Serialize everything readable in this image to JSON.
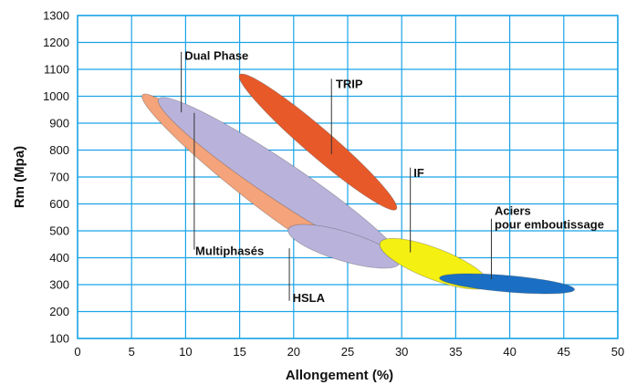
{
  "chart_data": {
    "type": "scatter",
    "xlabel": "Allongement (%)",
    "ylabel": "Rm (Mpa)",
    "xlim": [
      0,
      50
    ],
    "ylim": [
      100,
      1300
    ],
    "xticks": [
      "0",
      "5",
      "10",
      "15",
      "20",
      "25",
      "30",
      "35",
      "40",
      "45",
      "50"
    ],
    "yticks": [
      "100",
      "200",
      "300",
      "400",
      "500",
      "600",
      "700",
      "800",
      "900",
      "1000",
      "1100",
      "1200",
      "1300"
    ],
    "grid": true,
    "regions": [
      {
        "name": "Multiphasés",
        "label_lines": [
          "Multiphasés"
        ],
        "color": "#f4a37a",
        "start": [
          6,
          1005
        ],
        "end": [
          24.5,
          405
        ],
        "width": 34,
        "leader_x": 10.8,
        "leader_from": 938,
        "leader_to": 430,
        "label_at": [
          10.9,
          410
        ]
      },
      {
        "name": "Dual Phase",
        "label_lines": [
          "Dual Phase"
        ],
        "color": "#b9b3dc",
        "start": [
          7.5,
          990
        ],
        "end": [
          30,
          385
        ],
        "width": 42,
        "leader_x": 9.6,
        "leader_from": 1165,
        "leader_to": 940,
        "label_at": [
          9.9,
          1135
        ]
      },
      {
        "name": "HSLA",
        "label_lines": [
          "HSLA"
        ],
        "color": "#b9b3dc",
        "start": [
          19.5,
          505
        ],
        "end": [
          29.8,
          380
        ],
        "width": 32,
        "leader_x": 19.6,
        "leader_from": 435,
        "leader_to": 240,
        "label_at": [
          19.9,
          235
        ]
      },
      {
        "name": "TRIP",
        "label_lines": [
          "TRIP"
        ],
        "color": "#e8592a",
        "start": [
          15,
          1080
        ],
        "end": [
          29.5,
          580
        ],
        "width": 30,
        "leader_x": 23.5,
        "leader_from": 1065,
        "leader_to": 785,
        "label_at": [
          23.9,
          1030
        ]
      },
      {
        "name": "IF",
        "label_lines": [
          "IF"
        ],
        "color": "#f4f011",
        "start": [
          28,
          455
        ],
        "end": [
          38,
          300
        ],
        "width": 34,
        "leader_x": 30.8,
        "leader_from": 735,
        "leader_to": 420,
        "label_at": [
          31.1,
          700
        ]
      },
      {
        "name": "Aciers pour emboutissage",
        "label_lines": [
          "Aciers",
          "pour emboutissage"
        ],
        "color": "#1a6fc4",
        "start": [
          33.5,
          325
        ],
        "end": [
          46,
          282
        ],
        "width": 18,
        "leader_x": 38.3,
        "leader_from": 545,
        "leader_to": 320,
        "label_at": [
          38.6,
          560
        ]
      }
    ]
  }
}
